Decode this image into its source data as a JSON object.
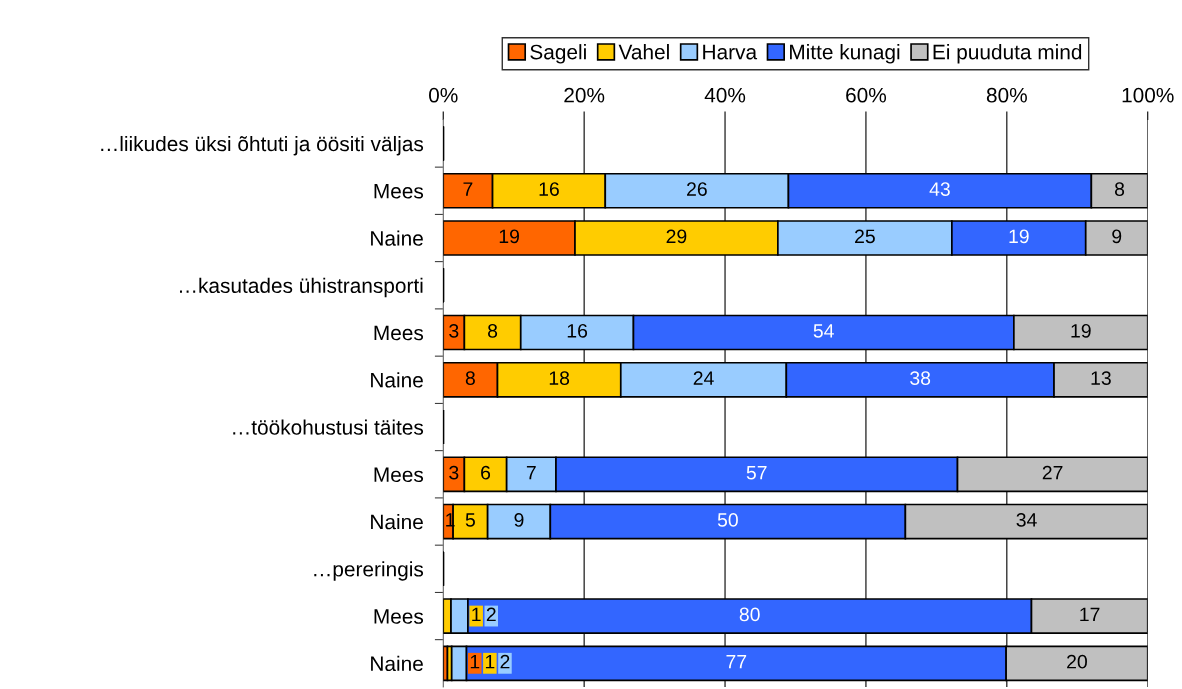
{
  "chart_data": {
    "type": "bar",
    "orientation": "horizontal",
    "stacked": true,
    "categories": [
      "…liikudes üksi õhtuti ja öösiti väljas",
      "Mees",
      "Naine",
      "…kasutades ühistransporti",
      "Mees",
      "Naine",
      "…töökohustusi täites",
      "Mees",
      "Naine",
      "…pereringis",
      "Mees",
      "Naine"
    ],
    "series": [
      {
        "name": "Sageli",
        "color": "#ff6600",
        "values": [
          null,
          7,
          18.7,
          null,
          3,
          7.7,
          null,
          3,
          1.4,
          null,
          0,
          0.6
        ],
        "value_labels": [
          null,
          "7",
          "19",
          null,
          "3",
          "8",
          null,
          "3",
          "1",
          null,
          null,
          "1"
        ]
      },
      {
        "name": "Vahel",
        "color": "#ffcc00",
        "values": [
          null,
          16,
          28.8,
          null,
          8,
          17.5,
          null,
          6,
          4.9,
          null,
          1.1,
          0.6
        ],
        "value_labels": [
          null,
          "16",
          "29",
          null,
          "8",
          "18",
          null,
          "6",
          "5",
          null,
          "1",
          "1"
        ]
      },
      {
        "name": "Harva",
        "color": "#99ccff",
        "values": [
          null,
          26,
          24.7,
          null,
          16,
          23.5,
          null,
          7,
          8.9,
          null,
          2.4,
          2.1
        ],
        "value_labels": [
          null,
          "26",
          "25",
          null,
          "16",
          "24",
          null,
          "7",
          "9",
          null,
          "2",
          "2"
        ]
      },
      {
        "name": "Mitte kunagi",
        "color": "#3366ff",
        "values": [
          null,
          43,
          19.0,
          null,
          54,
          38.0,
          null,
          57,
          50.4,
          null,
          80.0,
          76.6
        ],
        "value_labels": [
          null,
          "43",
          "19",
          null,
          "54",
          "38",
          null,
          "57",
          "50",
          null,
          "80",
          "77"
        ]
      },
      {
        "name": "Ei puuduta mind",
        "color": "#c0c0c0",
        "values": [
          null,
          8,
          8.8,
          null,
          19,
          13.3,
          null,
          27,
          34.4,
          null,
          16.5,
          20.1
        ],
        "value_labels": [
          null,
          "8",
          "9",
          null,
          "19",
          "13",
          null,
          "27",
          "34",
          null,
          "17",
          "20"
        ]
      }
    ],
    "xlim": [
      0,
      100
    ],
    "xticks": [
      {
        "value": 0,
        "label": "0%"
      },
      {
        "value": 20,
        "label": "20%"
      },
      {
        "value": 40,
        "label": "40%"
      },
      {
        "value": 60,
        "label": "60%"
      },
      {
        "value": 80,
        "label": "80%"
      },
      {
        "value": 100,
        "label": "100%"
      }
    ],
    "grid": "x",
    "legend": "top"
  }
}
